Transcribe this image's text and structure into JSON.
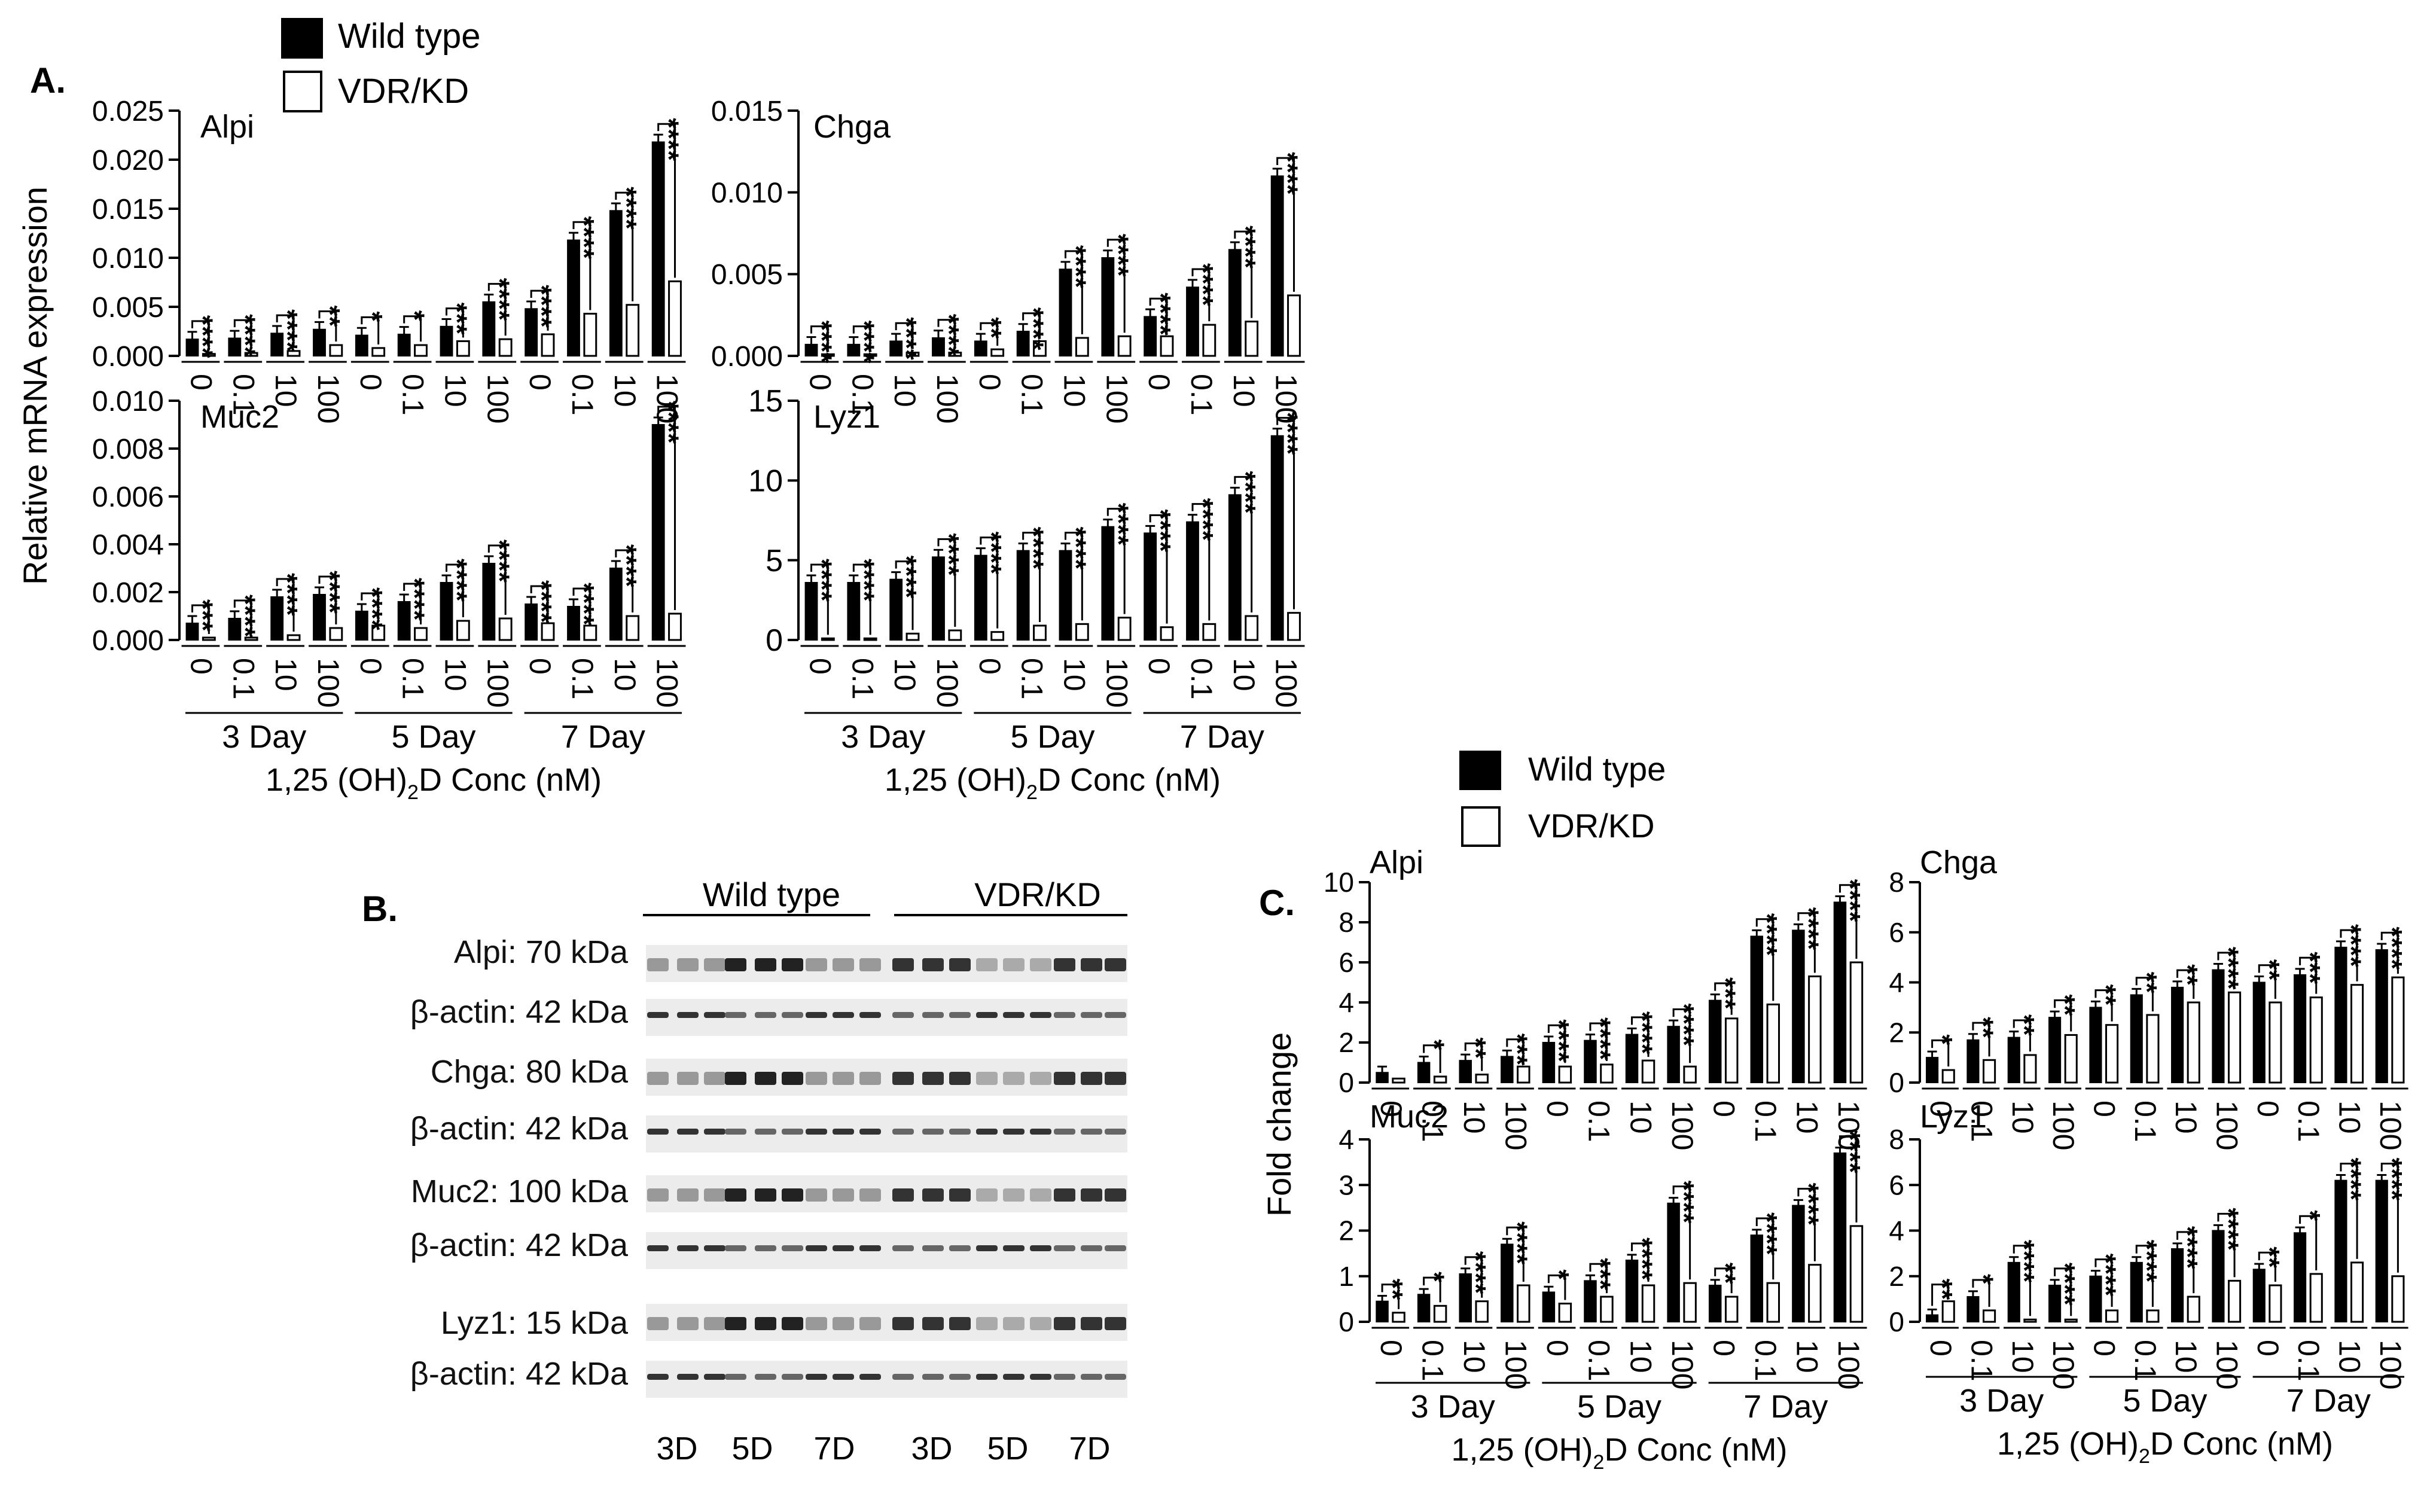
{
  "legend": {
    "wild_type": "Wild type",
    "vdr_kd": "VDR/KD"
  },
  "panel_labels": {
    "a": "A.",
    "b": "B.",
    "c": "C."
  },
  "axis": {
    "ylabel_a": "Relative mRNA expression",
    "ylabel_c": "Fold change",
    "xlabel_main": "1,25 (OH)",
    "xlabel_sub": "2",
    "xlabel_tail": "D Conc (nM)"
  },
  "concentrations": [
    "0",
    "0.1",
    "10",
    "100"
  ],
  "days": [
    "3 Day",
    "5 Day",
    "7 Day"
  ],
  "chart_data": [
    {
      "type": "bar",
      "panel": "A",
      "title": "Alpi",
      "ylabel": "Relative mRNA expression",
      "xlabel": "1,25 (OH)2D Conc (nM)",
      "ylim": [
        0,
        0.025
      ],
      "yticks": [
        "0.000",
        "0.005",
        "0.010",
        "0.015",
        "0.020",
        "0.025"
      ],
      "categories": [
        "3 Day 0",
        "3 Day 0.1",
        "3 Day 10",
        "3 Day 100",
        "5 Day 0",
        "5 Day 0.1",
        "5 Day 10",
        "5 Day 100",
        "7 Day 0",
        "7 Day 0.1",
        "7 Day 10",
        "7 Day 100"
      ],
      "series": [
        {
          "name": "Wild type",
          "values": [
            0.0017,
            0.0018,
            0.0023,
            0.0027,
            0.0021,
            0.0022,
            0.003,
            0.0055,
            0.0048,
            0.0118,
            0.0148,
            0.0218
          ]
        },
        {
          "name": "VDR/KD",
          "values": [
            0.0002,
            0.0003,
            0.0005,
            0.0011,
            0.0008,
            0.0011,
            0.0015,
            0.0017,
            0.0022,
            0.0043,
            0.0052,
            0.0076
          ]
        }
      ],
      "significance": [
        "****",
        "****",
        "****",
        "**",
        "*",
        "*",
        "***",
        "****",
        "****",
        "****",
        "****",
        "****"
      ]
    },
    {
      "type": "bar",
      "panel": "A",
      "title": "Chga",
      "ylabel": "Relative mRNA expression",
      "xlabel": "1,25 (OH)2D Conc (nM)",
      "ylim": [
        0,
        0.015
      ],
      "yticks": [
        "0.000",
        "0.005",
        "0.010",
        "0.015"
      ],
      "categories": [
        "3 Day 0",
        "3 Day 0.1",
        "3 Day 10",
        "3 Day 100",
        "5 Day 0",
        "5 Day 0.1",
        "5 Day 10",
        "5 Day 100",
        "7 Day 0",
        "7 Day 0.1",
        "7 Day 10",
        "7 Day 100"
      ],
      "series": [
        {
          "name": "Wild type",
          "values": [
            0.0007,
            0.0007,
            0.0009,
            0.0011,
            0.0009,
            0.0015,
            0.0053,
            0.006,
            0.0024,
            0.0042,
            0.0065,
            0.011
          ]
        },
        {
          "name": "VDR/KD",
          "values": [
            0.0001,
            0.0001,
            0.0002,
            0.0002,
            0.0004,
            0.0009,
            0.0011,
            0.0012,
            0.0012,
            0.0019,
            0.0021,
            0.0037
          ]
        }
      ],
      "significance": [
        "****",
        "****",
        "****",
        "****",
        "**",
        "****",
        "****",
        "****",
        "****",
        "****",
        "****",
        "****"
      ]
    },
    {
      "type": "bar",
      "panel": "A",
      "title": "Muc2",
      "ylabel": "Relative mRNA expression",
      "xlabel": "1,25 (OH)2D Conc (nM)",
      "ylim": [
        0,
        0.01
      ],
      "yticks": [
        "0.000",
        "0.002",
        "0.004",
        "0.006",
        "0.008",
        "0.010"
      ],
      "categories": [
        "3 Day 0",
        "3 Day 0.1",
        "3 Day 10",
        "3 Day 100",
        "5 Day 0",
        "5 Day 0.1",
        "5 Day 10",
        "5 Day 100",
        "7 Day 0",
        "7 Day 0.1",
        "7 Day 10",
        "7 Day 100"
      ],
      "series": [
        {
          "name": "Wild type",
          "values": [
            0.0007,
            0.0009,
            0.0018,
            0.0019,
            0.0012,
            0.0016,
            0.0024,
            0.0032,
            0.0015,
            0.0014,
            0.003,
            0.009
          ]
        },
        {
          "name": "VDR/KD",
          "values": [
            0.0001,
            0.0001,
            0.0002,
            0.0005,
            0.0006,
            0.0005,
            0.0008,
            0.0009,
            0.0007,
            0.0006,
            0.001,
            0.0011
          ]
        }
      ],
      "significance": [
        "***",
        "****",
        "****",
        "****",
        "****",
        "****",
        "****",
        "****",
        "****",
        "****",
        "****",
        "****"
      ]
    },
    {
      "type": "bar",
      "panel": "A",
      "title": "Lyz1",
      "ylabel": "Relative mRNA expression",
      "xlabel": "1,25 (OH)2D Conc (nM)",
      "ylim": [
        0,
        15
      ],
      "yticks": [
        "0",
        "5",
        "10",
        "15"
      ],
      "categories": [
        "3 Day 0",
        "3 Day 0.1",
        "3 Day 10",
        "3 Day 100",
        "5 Day 0",
        "5 Day 0.1",
        "5 Day 10",
        "5 Day 100",
        "7 Day 0",
        "7 Day 0.1",
        "7 Day 10",
        "7 Day 100"
      ],
      "series": [
        {
          "name": "Wild type",
          "values": [
            3.6,
            3.6,
            3.8,
            5.2,
            5.3,
            5.6,
            5.6,
            7.1,
            6.7,
            7.4,
            9.1,
            12.8
          ]
        },
        {
          "name": "VDR/KD",
          "values": [
            0.1,
            0.1,
            0.4,
            0.6,
            0.5,
            0.9,
            1.0,
            1.4,
            0.8,
            1.0,
            1.5,
            1.7
          ]
        }
      ],
      "significance": [
        "****",
        "****",
        "****",
        "****",
        "****",
        "****",
        "****",
        "****",
        "****",
        "****",
        "****",
        "****"
      ]
    },
    {
      "type": "bar",
      "panel": "C",
      "title": "Alpi",
      "ylabel": "Fold change",
      "xlabel": "1,25 (OH)2D Conc (nM)",
      "ylim": [
        0,
        10
      ],
      "yticks": [
        "0",
        "2",
        "4",
        "6",
        "8",
        "10"
      ],
      "categories": [
        "3 Day 0",
        "3 Day 0.1",
        "3 Day 10",
        "3 Day 100",
        "5 Day 0",
        "5 Day 0.1",
        "5 Day 10",
        "5 Day 100",
        "7 Day 0",
        "7 Day 0.1",
        "7 Day 10",
        "7 Day 100"
      ],
      "series": [
        {
          "name": "Wild type",
          "values": [
            0.5,
            1.0,
            1.1,
            1.3,
            2.0,
            2.1,
            2.4,
            2.8,
            4.1,
            7.3,
            7.6,
            9.0
          ]
        },
        {
          "name": "VDR/KD",
          "values": [
            0.2,
            0.3,
            0.4,
            0.8,
            0.8,
            0.9,
            1.1,
            0.8,
            3.2,
            3.9,
            5.3,
            6.0
          ]
        }
      ],
      "significance": [
        "",
        "*",
        "**",
        "***",
        "****",
        "****",
        "****",
        "****",
        "***",
        "****",
        "****",
        "****"
      ]
    },
    {
      "type": "bar",
      "panel": "C",
      "title": "Chga",
      "ylabel": "Fold change",
      "xlabel": "1,25 (OH)2D Conc (nM)",
      "ylim": [
        0,
        8
      ],
      "yticks": [
        "0",
        "2",
        "4",
        "6",
        "8"
      ],
      "categories": [
        "3 Day 0",
        "3 Day 0.1",
        "3 Day 10",
        "3 Day 100",
        "5 Day 0",
        "5 Day 0.1",
        "5 Day 10",
        "5 Day 100",
        "7 Day 0",
        "7 Day 0.1",
        "7 Day 10",
        "7 Day 100"
      ],
      "series": [
        {
          "name": "Wild type",
          "values": [
            1.0,
            1.7,
            1.8,
            2.6,
            3.0,
            3.5,
            3.8,
            4.5,
            4.0,
            4.3,
            5.4,
            5.3
          ]
        },
        {
          "name": "VDR/KD",
          "values": [
            0.5,
            0.9,
            1.1,
            1.9,
            2.3,
            2.7,
            3.2,
            3.6,
            3.2,
            3.4,
            3.9,
            4.2
          ]
        }
      ],
      "significance": [
        "*",
        "**",
        "**",
        "**",
        "**",
        "**",
        "**",
        "****",
        "**",
        "***",
        "****",
        "****"
      ]
    },
    {
      "type": "bar",
      "panel": "C",
      "title": "Muc2",
      "ylabel": "Fold change",
      "xlabel": "1,25 (OH)2D Conc (nM)",
      "ylim": [
        0,
        4
      ],
      "yticks": [
        "0",
        "1",
        "2",
        "3",
        "4"
      ],
      "categories": [
        "3 Day 0",
        "3 Day 0.1",
        "3 Day 10",
        "3 Day 100",
        "5 Day 0",
        "5 Day 0.1",
        "5 Day 10",
        "5 Day 100",
        "7 Day 0",
        "7 Day 0.1",
        "7 Day 10",
        "7 Day 100"
      ],
      "series": [
        {
          "name": "Wild type",
          "values": [
            0.45,
            0.6,
            1.05,
            1.7,
            0.65,
            0.9,
            1.35,
            2.6,
            0.8,
            1.9,
            2.55,
            3.7
          ]
        },
        {
          "name": "VDR/KD",
          "values": [
            0.2,
            0.35,
            0.45,
            0.8,
            0.4,
            0.55,
            0.8,
            0.85,
            0.55,
            0.85,
            1.25,
            2.1
          ]
        }
      ],
      "significance": [
        "**",
        "*",
        "****",
        "****",
        "*",
        "***",
        "****",
        "****",
        "**",
        "****",
        "****",
        "****"
      ]
    },
    {
      "type": "bar",
      "panel": "C",
      "title": "Lyz1",
      "ylabel": "Fold change",
      "xlabel": "1,25 (OH)2D Conc (nM)",
      "ylim": [
        0,
        8
      ],
      "yticks": [
        "0",
        "2",
        "4",
        "6",
        "8"
      ],
      "categories": [
        "3 Day 0",
        "3 Day 0.1",
        "3 Day 10",
        "3 Day 100",
        "5 Day 0",
        "5 Day 0.1",
        "5 Day 10",
        "5 Day 100",
        "7 Day 0",
        "7 Day 0.1",
        "7 Day 10",
        "7 Day 100"
      ],
      "series": [
        {
          "name": "Wild type",
          "values": [
            0.3,
            1.1,
            2.6,
            1.6,
            2.0,
            2.6,
            3.2,
            4.0,
            2.3,
            3.9,
            6.2,
            6.2
          ]
        },
        {
          "name": "VDR/KD",
          "values": [
            0.9,
            0.5,
            0.1,
            0.1,
            0.5,
            0.5,
            1.1,
            1.8,
            1.6,
            2.1,
            2.6,
            2.0
          ]
        }
      ],
      "significance": [
        "**",
        "*",
        "****",
        "****",
        "****",
        "****",
        "****",
        "****",
        "**",
        "*",
        "****",
        "****"
      ]
    }
  ],
  "blot": {
    "group_labels": [
      "Wild type",
      "VDR/KD"
    ],
    "rows": [
      {
        "protein": "Alpi: 70 kDa",
        "loading": "β-actin: 42 kDa"
      },
      {
        "protein": "Chga: 80 kDa",
        "loading": "β-actin: 42 kDa"
      },
      {
        "protein": "Muc2: 100 kDa",
        "loading": "β-actin: 42 kDa"
      },
      {
        "protein": "Lyz1: 15 kDa",
        "loading": "β-actin: 42 kDa"
      }
    ],
    "lane_labels": [
      "3D",
      "5D",
      "7D",
      "3D",
      "5D",
      "7D"
    ]
  }
}
